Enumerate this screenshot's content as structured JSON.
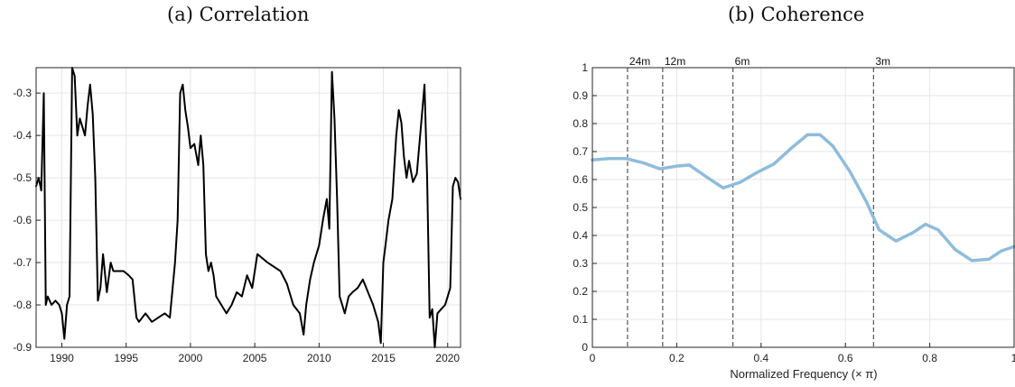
{
  "chart_data": [
    {
      "type": "line",
      "title": "(a) Correlation",
      "xlim": [
        1988.0,
        2021.0
      ],
      "ylim": [
        -0.9,
        -0.24
      ],
      "xticks": [
        1990,
        1995,
        2000,
        2005,
        2010,
        2015,
        2020
      ],
      "yticks": [
        -0.9,
        -0.8,
        -0.7,
        -0.6,
        -0.5,
        -0.4,
        -0.3
      ],
      "ytick_labels": [
        "-0.9",
        "-0.8",
        "-0.7",
        "-0.6",
        "-0.5",
        "-0.4",
        "-0.3"
      ],
      "grid": true,
      "series": [
        {
          "color": "#000000",
          "points": [
            [
              1988.0,
              -0.52
            ],
            [
              1988.2,
              -0.5
            ],
            [
              1988.4,
              -0.53
            ],
            [
              1988.6,
              -0.3
            ],
            [
              1988.75,
              -0.8
            ],
            [
              1988.9,
              -0.78
            ],
            [
              1989.2,
              -0.8
            ],
            [
              1989.5,
              -0.79
            ],
            [
              1989.8,
              -0.8
            ],
            [
              1990.0,
              -0.82
            ],
            [
              1990.2,
              -0.88
            ],
            [
              1990.4,
              -0.8
            ],
            [
              1990.6,
              -0.78
            ],
            [
              1990.8,
              -0.24
            ],
            [
              1991.0,
              -0.26
            ],
            [
              1991.2,
              -0.4
            ],
            [
              1991.4,
              -0.36
            ],
            [
              1991.6,
              -0.38
            ],
            [
              1991.8,
              -0.4
            ],
            [
              1992.0,
              -0.33
            ],
            [
              1992.2,
              -0.28
            ],
            [
              1992.4,
              -0.35
            ],
            [
              1992.6,
              -0.5
            ],
            [
              1992.8,
              -0.79
            ],
            [
              1993.0,
              -0.76
            ],
            [
              1993.2,
              -0.68
            ],
            [
              1993.5,
              -0.77
            ],
            [
              1993.8,
              -0.7
            ],
            [
              1994.0,
              -0.72
            ],
            [
              1994.4,
              -0.72
            ],
            [
              1994.8,
              -0.72
            ],
            [
              1995.2,
              -0.73
            ],
            [
              1995.5,
              -0.74
            ],
            [
              1995.8,
              -0.83
            ],
            [
              1996.0,
              -0.84
            ],
            [
              1996.5,
              -0.82
            ],
            [
              1997.0,
              -0.84
            ],
            [
              1997.5,
              -0.83
            ],
            [
              1998.0,
              -0.82
            ],
            [
              1998.4,
              -0.83
            ],
            [
              1998.8,
              -0.7
            ],
            [
              1999.0,
              -0.6
            ],
            [
              1999.2,
              -0.3
            ],
            [
              1999.4,
              -0.28
            ],
            [
              1999.6,
              -0.34
            ],
            [
              1999.8,
              -0.38
            ],
            [
              2000.0,
              -0.43
            ],
            [
              2000.3,
              -0.42
            ],
            [
              2000.6,
              -0.47
            ],
            [
              2000.8,
              -0.4
            ],
            [
              2001.0,
              -0.47
            ],
            [
              2001.2,
              -0.68
            ],
            [
              2001.4,
              -0.72
            ],
            [
              2001.6,
              -0.7
            ],
            [
              2001.8,
              -0.73
            ],
            [
              2002.0,
              -0.78
            ],
            [
              2002.4,
              -0.8
            ],
            [
              2002.8,
              -0.82
            ],
            [
              2003.2,
              -0.8
            ],
            [
              2003.6,
              -0.77
            ],
            [
              2004.0,
              -0.78
            ],
            [
              2004.4,
              -0.73
            ],
            [
              2004.8,
              -0.76
            ],
            [
              2005.2,
              -0.68
            ],
            [
              2005.6,
              -0.69
            ],
            [
              2006.0,
              -0.7
            ],
            [
              2006.5,
              -0.71
            ],
            [
              2007.0,
              -0.72
            ],
            [
              2007.5,
              -0.75
            ],
            [
              2008.0,
              -0.8
            ],
            [
              2008.5,
              -0.82
            ],
            [
              2008.8,
              -0.87
            ],
            [
              2009.0,
              -0.8
            ],
            [
              2009.3,
              -0.74
            ],
            [
              2009.6,
              -0.7
            ],
            [
              2010.0,
              -0.66
            ],
            [
              2010.3,
              -0.6
            ],
            [
              2010.6,
              -0.55
            ],
            [
              2010.8,
              -0.62
            ],
            [
              2011.0,
              -0.25
            ],
            [
              2011.2,
              -0.36
            ],
            [
              2011.4,
              -0.55
            ],
            [
              2011.6,
              -0.78
            ],
            [
              2011.8,
              -0.8
            ],
            [
              2012.0,
              -0.82
            ],
            [
              2012.3,
              -0.78
            ],
            [
              2012.6,
              -0.77
            ],
            [
              2013.0,
              -0.76
            ],
            [
              2013.4,
              -0.74
            ],
            [
              2013.8,
              -0.77
            ],
            [
              2014.2,
              -0.8
            ],
            [
              2014.6,
              -0.84
            ],
            [
              2014.8,
              -0.89
            ],
            [
              2015.0,
              -0.7
            ],
            [
              2015.2,
              -0.65
            ],
            [
              2015.4,
              -0.6
            ],
            [
              2015.7,
              -0.55
            ],
            [
              2016.0,
              -0.4
            ],
            [
              2016.2,
              -0.34
            ],
            [
              2016.4,
              -0.37
            ],
            [
              2016.6,
              -0.45
            ],
            [
              2016.8,
              -0.5
            ],
            [
              2017.0,
              -0.46
            ],
            [
              2017.3,
              -0.51
            ],
            [
              2017.6,
              -0.49
            ],
            [
              2018.0,
              -0.35
            ],
            [
              2018.2,
              -0.28
            ],
            [
              2018.4,
              -0.5
            ],
            [
              2018.6,
              -0.83
            ],
            [
              2018.8,
              -0.81
            ],
            [
              2019.0,
              -0.9
            ],
            [
              2019.2,
              -0.82
            ],
            [
              2019.5,
              -0.81
            ],
            [
              2019.8,
              -0.8
            ],
            [
              2020.0,
              -0.78
            ],
            [
              2020.2,
              -0.76
            ],
            [
              2020.4,
              -0.52
            ],
            [
              2020.6,
              -0.5
            ],
            [
              2020.8,
              -0.51
            ],
            [
              2021.0,
              -0.55
            ]
          ]
        }
      ]
    },
    {
      "type": "line",
      "title": "(b) Coherence",
      "xlabel": "Normalized Frequency (× π)",
      "xlim": [
        0,
        1
      ],
      "ylim": [
        0,
        1
      ],
      "xticks": [
        0,
        0.2,
        0.4,
        0.6,
        0.8,
        1
      ],
      "xtick_labels": [
        "0",
        "0.2",
        "0.4",
        "0.6",
        "0.8",
        "1"
      ],
      "yticks": [
        0,
        0.1,
        0.2,
        0.3,
        0.4,
        0.5,
        0.6,
        0.7,
        0.8,
        0.9,
        1
      ],
      "ytick_labels": [
        "0",
        "0.1",
        "0.2",
        "0.3",
        "0.4",
        "0.5",
        "0.6",
        "0.7",
        "0.8",
        "0.9",
        "1"
      ],
      "grid": true,
      "period_markers": [
        {
          "x": 0.0833,
          "label": "24m"
        },
        {
          "x": 0.1667,
          "label": "12m"
        },
        {
          "x": 0.3333,
          "label": "6m"
        },
        {
          "x": 0.6667,
          "label": "3m"
        }
      ],
      "series": [
        {
          "color": "#8fbcdb",
          "points": [
            [
              0.0,
              0.67
            ],
            [
              0.04,
              0.675
            ],
            [
              0.08,
              0.675
            ],
            [
              0.12,
              0.66
            ],
            [
              0.16,
              0.638
            ],
            [
              0.2,
              0.648
            ],
            [
              0.23,
              0.652
            ],
            [
              0.27,
              0.61
            ],
            [
              0.31,
              0.57
            ],
            [
              0.35,
              0.59
            ],
            [
              0.39,
              0.625
            ],
            [
              0.43,
              0.655
            ],
            [
              0.47,
              0.71
            ],
            [
              0.51,
              0.76
            ],
            [
              0.54,
              0.76
            ],
            [
              0.57,
              0.72
            ],
            [
              0.61,
              0.63
            ],
            [
              0.65,
              0.52
            ],
            [
              0.68,
              0.42
            ],
            [
              0.72,
              0.38
            ],
            [
              0.76,
              0.41
            ],
            [
              0.79,
              0.44
            ],
            [
              0.82,
              0.42
            ],
            [
              0.86,
              0.35
            ],
            [
              0.9,
              0.31
            ],
            [
              0.94,
              0.315
            ],
            [
              0.97,
              0.345
            ],
            [
              1.0,
              0.36
            ]
          ]
        }
      ]
    }
  ],
  "colors": {
    "axis": "#262626",
    "grid": "#e6e6e6",
    "line_a": "#000000",
    "line_b": "#8fbcdb",
    "marker": "#555555"
  }
}
